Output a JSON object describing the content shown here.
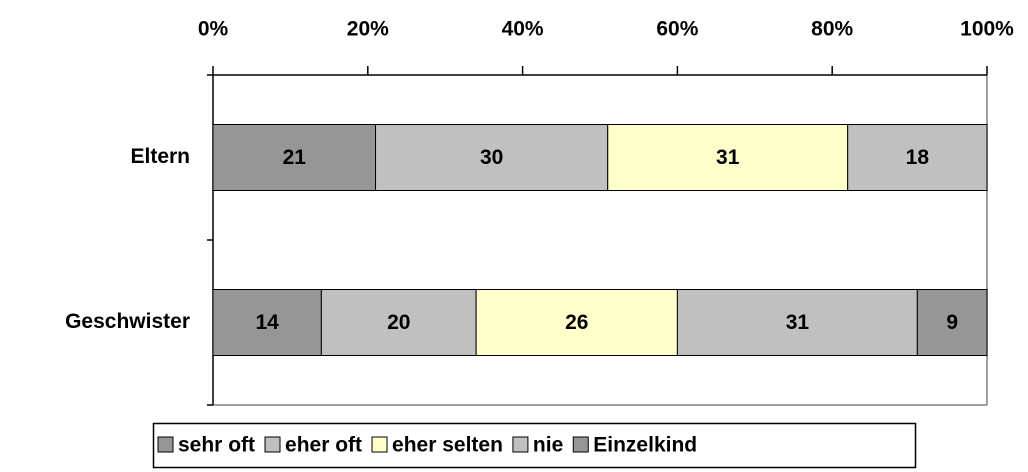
{
  "chart_data": {
    "type": "stacked_barh",
    "categories": [
      "Eltern",
      "Geschwister"
    ],
    "series": [
      {
        "name": "sehr oft",
        "color": "#969696",
        "values": [
          21,
          14
        ]
      },
      {
        "name": "eher oft",
        "color": "#c0c0c0",
        "values": [
          30,
          20
        ]
      },
      {
        "name": "eher selten",
        "color": "#ffffcc",
        "values": [
          31,
          26
        ]
      },
      {
        "name": "nie",
        "color": "#c0c0c0",
        "values": [
          18,
          31
        ]
      },
      {
        "name": "Einzelkind",
        "color": "#969696",
        "values": [
          null,
          9
        ]
      }
    ],
    "xlim": [
      0,
      100
    ],
    "xticks": [
      {
        "value": 0,
        "label": "0%"
      },
      {
        "value": 20,
        "label": "20%"
      },
      {
        "value": 40,
        "label": "40%"
      },
      {
        "value": 60,
        "label": "60%"
      },
      {
        "value": 80,
        "label": "80%"
      },
      {
        "value": 100,
        "label": "100%"
      }
    ],
    "legend": "bottom"
  }
}
